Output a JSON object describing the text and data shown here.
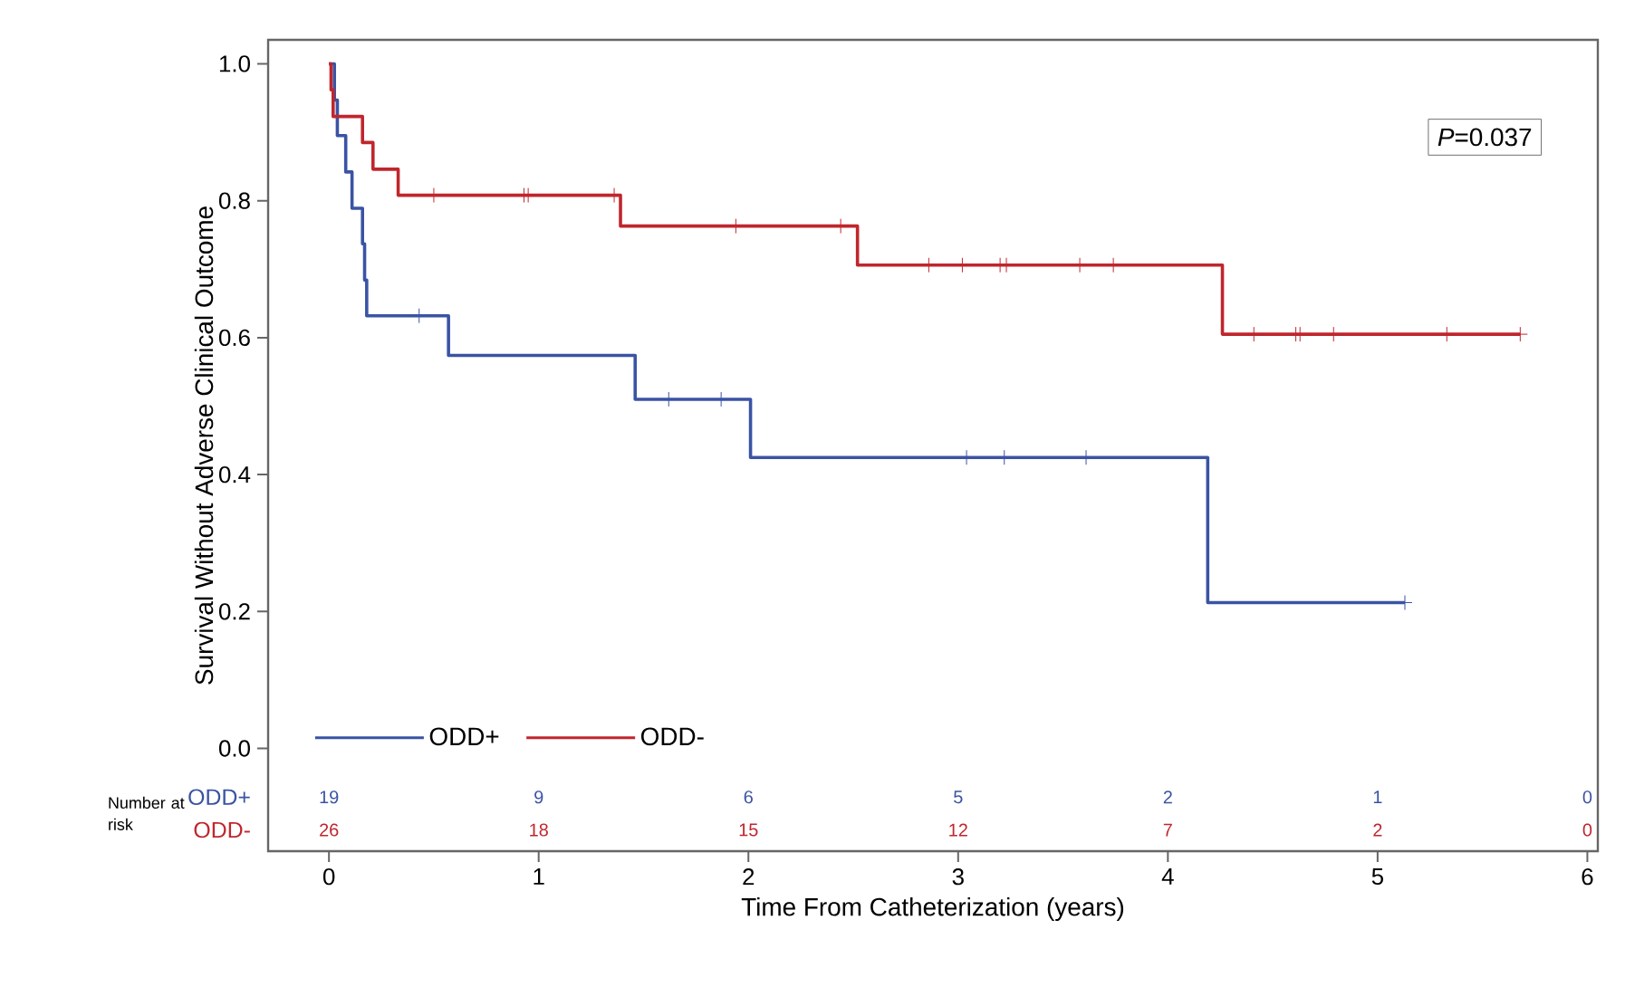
{
  "chart_data": {
    "type": "step",
    "ylabel": "Survival Without Adverse Clinical Outcome",
    "xlabel": "Time From Catheterization (years)",
    "xlim": [
      -0.29,
      6.05
    ],
    "ylim": [
      -0.15,
      1.035
    ],
    "xticks": [
      0,
      1,
      2,
      3,
      4,
      5,
      6
    ],
    "yticks": [
      {
        "value": 0,
        "label": "0.0"
      },
      {
        "value": 0.2,
        "label": "0.2"
      },
      {
        "value": 0.4,
        "label": "0.4"
      },
      {
        "value": 0.6,
        "label": "0.6"
      },
      {
        "value": 0.8,
        "label": "0.8"
      },
      {
        "value": 1,
        "label": "1.0"
      }
    ],
    "grid": false,
    "legend": "bottom left",
    "series": [
      {
        "name": "ODD+",
        "color": "#3a53a4",
        "x": [
          0,
          0.026,
          0.04,
          0.08,
          0.11,
          0.16,
          0.17,
          0.18,
          0.57,
          1.46,
          2.01,
          4.19,
          5.13
        ],
        "values": [
          1.0,
          0.947,
          0.895,
          0.842,
          0.789,
          0.737,
          0.684,
          0.632,
          0.574,
          0.51,
          0.425,
          0.213,
          0.213
        ]
      },
      {
        "name": "ODD-",
        "color": "#c0262d",
        "x": [
          0,
          0.01,
          0.02,
          0.16,
          0.21,
          0.33,
          1.39,
          2.52,
          4.26,
          5.68
        ],
        "values": [
          1.0,
          0.962,
          0.923,
          0.885,
          0.846,
          0.808,
          0.763,
          0.706,
          0.605,
          0.605
        ]
      },
      {
        "type": "scatter",
        "marker": "cross",
        "color": "#3a53a4",
        "x": [
          0.43,
          1.62,
          1.87,
          3.04,
          3.22,
          3.61,
          5.13
        ],
        "values": [
          0.632,
          0.51,
          0.51,
          0.425,
          0.425,
          0.425,
          0.213
        ]
      },
      {
        "type": "scatter",
        "marker": "cross",
        "color": "#c0262d",
        "x": [
          0.5,
          0.93,
          0.95,
          1.36,
          1.94,
          2.44,
          2.86,
          3.02,
          3.2,
          3.23,
          3.58,
          3.74,
          4.41,
          4.61,
          4.63,
          4.79,
          5.33,
          5.68
        ],
        "values": [
          0.808,
          0.808,
          0.808,
          0.808,
          0.763,
          0.763,
          0.706,
          0.706,
          0.706,
          0.706,
          0.706,
          0.706,
          0.605,
          0.605,
          0.605,
          0.605,
          0.605,
          0.605
        ]
      }
    ],
    "annotations": [
      "*P*=0.037",
      "Number at risk",
      "ODD+",
      "ODD-",
      "19",
      "9",
      "6",
      "5",
      "2",
      "1",
      "0",
      "26",
      "18",
      "15",
      "12",
      "7",
      "2",
      "0"
    ]
  }
}
